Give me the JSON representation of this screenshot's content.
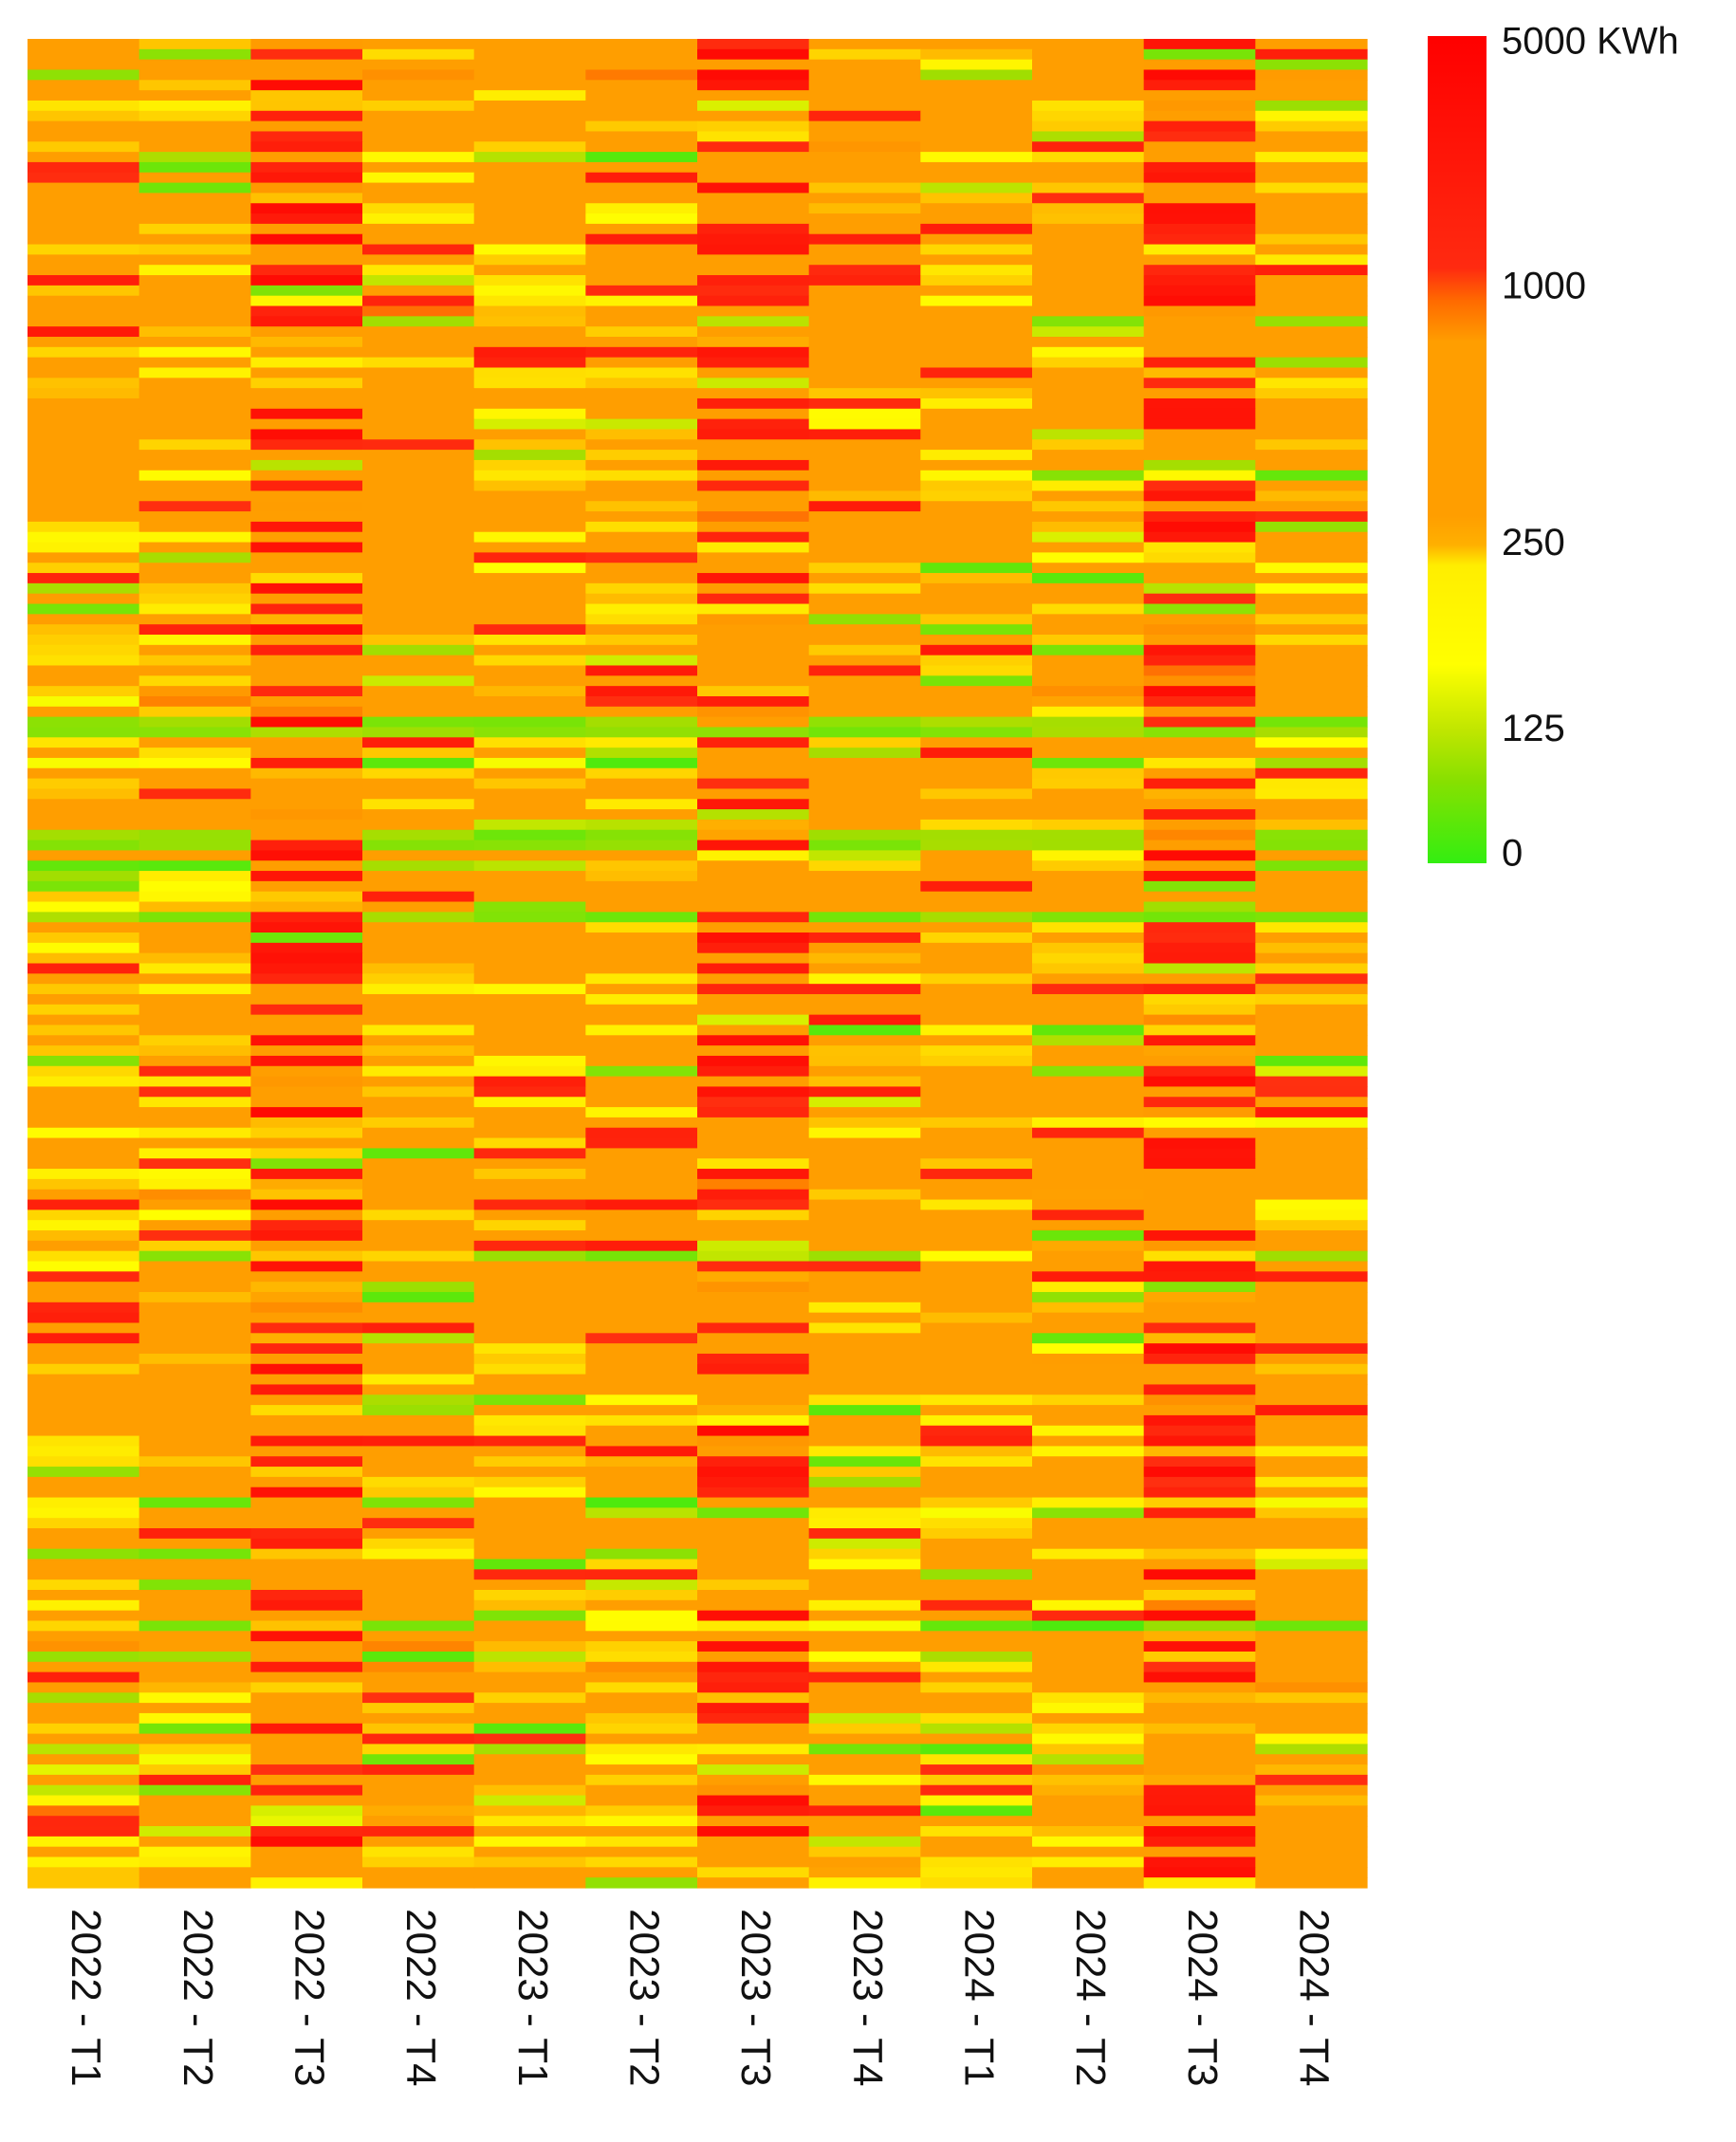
{
  "chart_data": {
    "type": "heatmap",
    "title": "",
    "xlabel": "",
    "ylabel": "",
    "categories": [
      "2022 - T1",
      "2022 - T2",
      "2022 - T3",
      "2022 - T4",
      "2023 - T1",
      "2023 - T2",
      "2023 - T3",
      "2023 - T4",
      "2024 - T1",
      "2024 - T2",
      "2024 - T3",
      "2024 - T4"
    ],
    "row_count": 180,
    "value_unit": "KWh",
    "legend": {
      "position": "top-right",
      "ticks": [
        {
          "value": 5000,
          "label": "5000 KWh"
        },
        {
          "value": 1000,
          "label": "1000"
        },
        {
          "value": 250,
          "label": "250"
        },
        {
          "value": 125,
          "label": "125"
        },
        {
          "value": 0,
          "label": "0"
        }
      ],
      "color_stops": [
        {
          "value": 0,
          "color": "#33ee11"
        },
        {
          "value": 125,
          "color": "#aadd00"
        },
        {
          "value": 200,
          "color": "#ffff00"
        },
        {
          "value": 250,
          "color": "#ffcc00"
        },
        {
          "value": 300,
          "color": "#ff9e00"
        },
        {
          "value": 900,
          "color": "#ff9e00"
        },
        {
          "value": 1000,
          "color": "#ff8000"
        },
        {
          "value": 1150,
          "color": "#ff3010"
        },
        {
          "value": 5000,
          "color": "#ff0000"
        }
      ]
    },
    "column_levels": [
      1.0,
      0.95,
      1.9,
      1.15,
      0.95,
      1.0,
      1.9,
      1.1,
      0.9,
      0.95,
      1.95,
      1.0
    ],
    "values_note": "180 rows x 12 quarters, consumption per cell in KWh"
  }
}
